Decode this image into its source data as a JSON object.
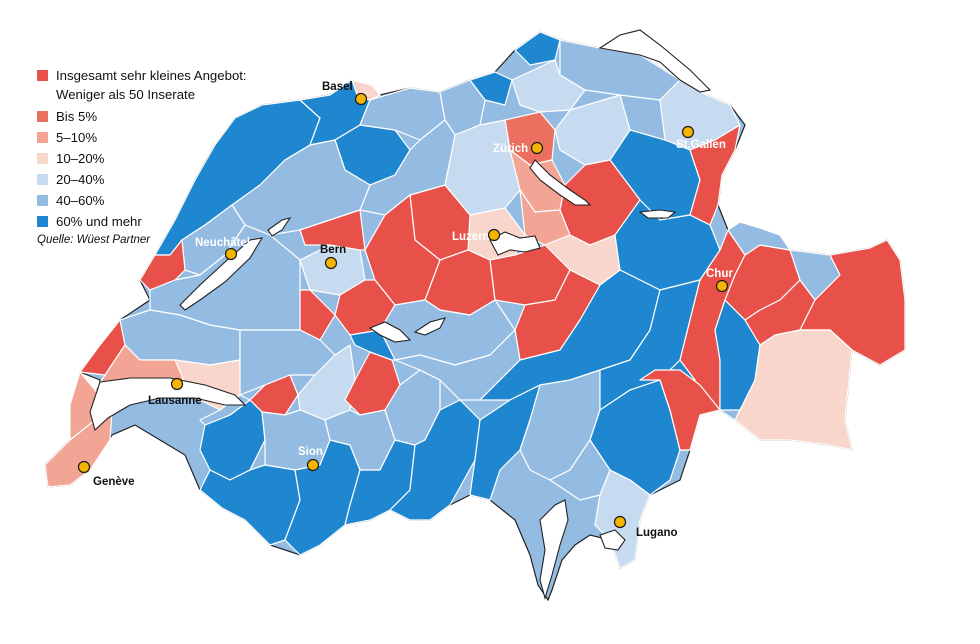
{
  "legend": {
    "items": [
      {
        "label": "Insgesamt sehr kleines Angebot:",
        "color": "#e8504a"
      },
      {
        "label": "Bis 5%",
        "color": "#ec7060"
      },
      {
        "label": "5–10%",
        "color": "#f2a595"
      },
      {
        "label": "10–20%",
        "color": "#f8d6cb"
      },
      {
        "label": "20–40%",
        "color": "#c6dbf0"
      },
      {
        "label": "40–60%",
        "color": "#94bce3"
      },
      {
        "label": "60% und mehr",
        "color": "#1f87cf"
      }
    ],
    "subtitle": "Weniger als 50 Inserate",
    "source": "Quelle: Wüest Partner"
  },
  "cities": [
    {
      "name": "Basel",
      "style": "dark"
    },
    {
      "name": "Zürich",
      "style": "light"
    },
    {
      "name": "St.Gallen",
      "style": "light"
    },
    {
      "name": "Neuchâtel",
      "style": "light"
    },
    {
      "name": "Bern",
      "style": "dark"
    },
    {
      "name": "Luzern",
      "style": "light"
    },
    {
      "name": "Chur",
      "style": "light"
    },
    {
      "name": "Lausanne",
      "style": "dark"
    },
    {
      "name": "Sion",
      "style": "light"
    },
    {
      "name": "Genève",
      "style": "dark"
    },
    {
      "name": "Lugano",
      "style": "dark"
    }
  ],
  "colors": {
    "very_small": "#e8504a",
    "bis5": "#ec7060",
    "p5_10": "#f2a595",
    "p10_20": "#f8d6cb",
    "p20_40": "#c6dbf0",
    "p40_60": "#94bce3",
    "p60plus": "#1f87cf",
    "dot": "#f5b400"
  }
}
